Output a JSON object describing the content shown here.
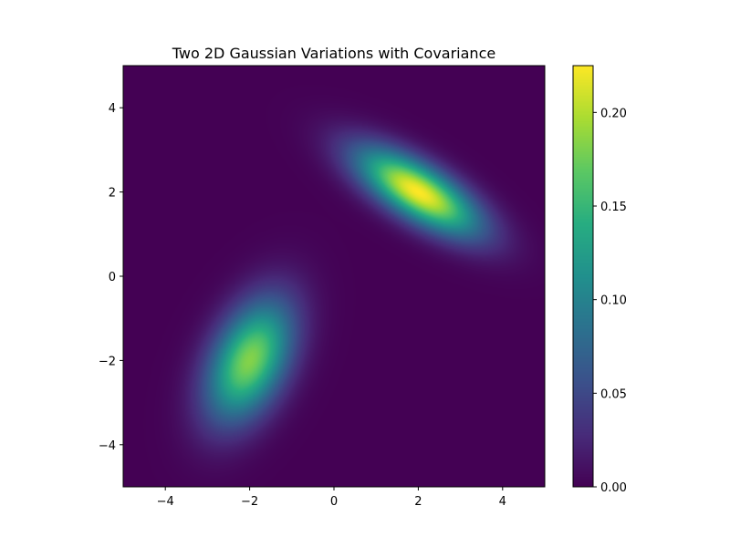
{
  "chart_data": {
    "type": "heatmap",
    "title": "Two 2D Gaussian Variations with Covariance",
    "xlabel": "",
    "ylabel": "",
    "xlim": [
      -5,
      5
    ],
    "ylim": [
      -5,
      5
    ],
    "x_ticks": [
      -4,
      -2,
      0,
      2,
      4
    ],
    "x_tick_labels": [
      "−4",
      "−2",
      "0",
      "2",
      "4"
    ],
    "y_ticks": [
      -4,
      -2,
      0,
      2,
      4
    ],
    "y_tick_labels": [
      "−4",
      "−2",
      "0",
      "2",
      "4"
    ],
    "grid": false,
    "colormap": "viridis",
    "colorbar": {
      "range": [
        0,
        0.225
      ],
      "ticks": [
        0,
        0.05,
        0.1,
        0.15,
        0.2
      ],
      "tick_labels": [
        "0.00",
        "0.05",
        "0.10",
        "0.15",
        "0.20"
      ]
    },
    "components": [
      {
        "mean": [
          2,
          2
        ],
        "covariance": [
          [
            1.0,
            -0.5
          ],
          [
            -0.5,
            0.5
          ]
        ],
        "peak_value": 0.225
      },
      {
        "mean": [
          -2,
          -2
        ],
        "covariance": [
          [
            0.5,
            0.3
          ],
          [
            0.3,
            1.0
          ]
        ],
        "peak_value": 0.183
      }
    ]
  }
}
